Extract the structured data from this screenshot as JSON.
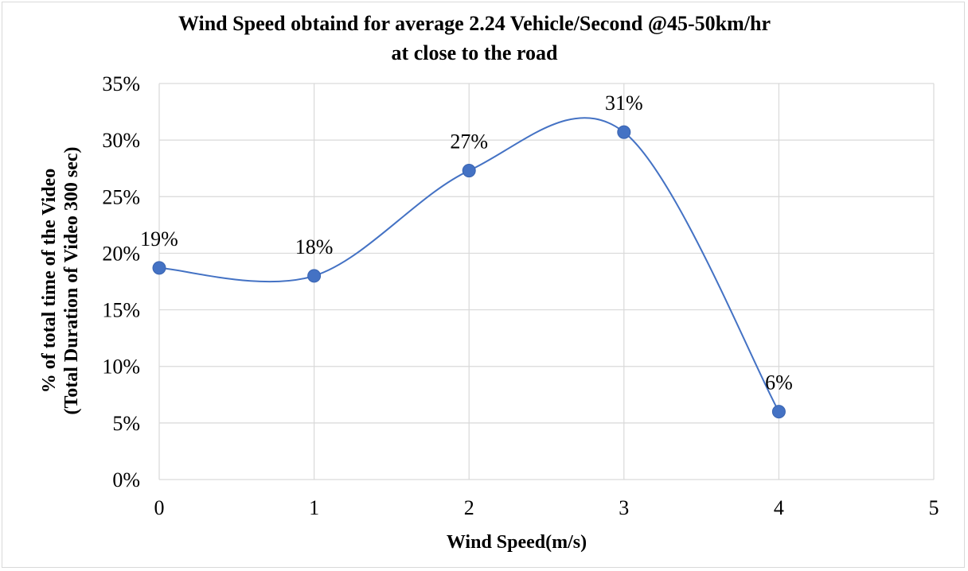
{
  "chart_data": {
    "type": "line",
    "title_lines": [
      "Wind Speed obtaind for average 2.24 Vehicle/Second @45-50km/hr",
      "at close to the road"
    ],
    "xlabel": "Wind Speed(m/s)",
    "ylabel_lines": [
      "% of total time of the Video",
      "(Total Duration of Video 300 sec)"
    ],
    "x_ticks": [
      "0",
      "1",
      "2",
      "3",
      "4",
      "5"
    ],
    "y_ticks": [
      "0%",
      "5%",
      "10%",
      "15%",
      "20%",
      "25%",
      "30%",
      "35%"
    ],
    "xlim": [
      0,
      5
    ],
    "ylim": [
      0,
      35
    ],
    "grid": true,
    "smooth": true,
    "series": [
      {
        "color": "#4472c4",
        "x": [
          0,
          1,
          2,
          3,
          4
        ],
        "y": [
          18.7,
          18.0,
          27.3,
          30.7,
          6.0
        ],
        "labels": [
          "19%",
          "18%",
          "27%",
          "31%",
          "6%"
        ]
      }
    ]
  }
}
